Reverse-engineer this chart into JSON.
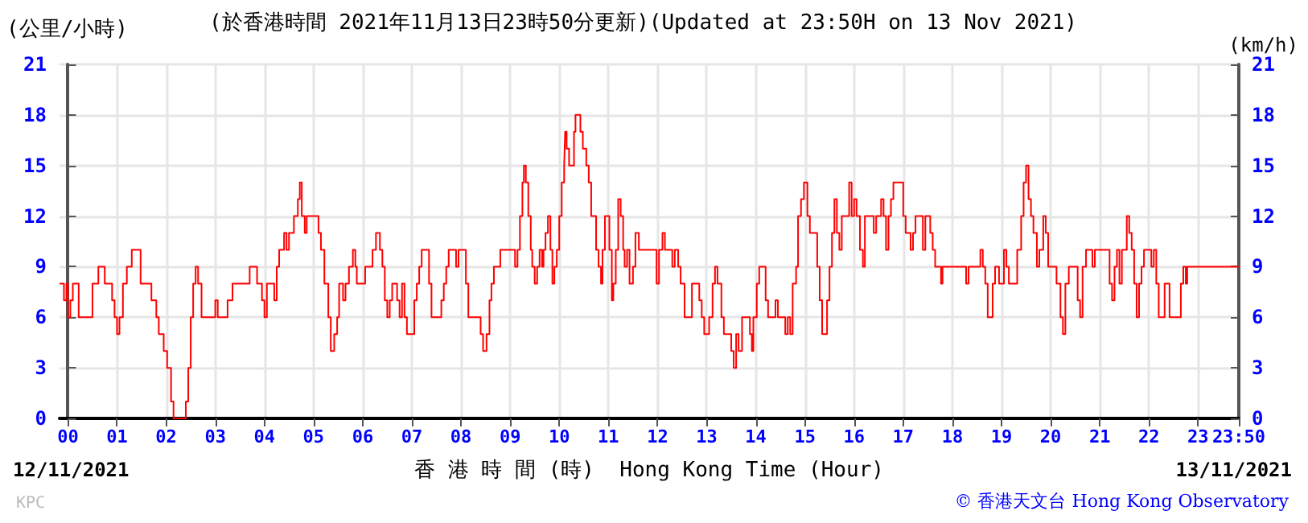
{
  "chart_data": {
    "type": "step",
    "title": "(於香港時間 2021年11月13日23時50分更新)(Updated at 23:50H on 13 Nov 2021)",
    "ylabel": "(公里/小時)",
    "y2label": "(km/h)",
    "xlabel": "香 港 時 間 (時)  Hong Kong Time (Hour)",
    "annotations": [
      "12/11/2021",
      "13/11/2021",
      "© 香港天文台 Hong Kong Observatory",
      "KPC"
    ],
    "xlim": [
      -0.17,
      23.83
    ],
    "xticks": [
      {
        "value": 0,
        "label": "00"
      },
      {
        "value": 1,
        "label": "01"
      },
      {
        "value": 2,
        "label": "02"
      },
      {
        "value": 3,
        "label": "03"
      },
      {
        "value": 4,
        "label": "04"
      },
      {
        "value": 5,
        "label": "05"
      },
      {
        "value": 6,
        "label": "06"
      },
      {
        "value": 7,
        "label": "07"
      },
      {
        "value": 8,
        "label": "08"
      },
      {
        "value": 9,
        "label": "09"
      },
      {
        "value": 10,
        "label": "10"
      },
      {
        "value": 11,
        "label": "11"
      },
      {
        "value": 12,
        "label": "12"
      },
      {
        "value": 13,
        "label": "13"
      },
      {
        "value": 14,
        "label": "14"
      },
      {
        "value": 15,
        "label": "15"
      },
      {
        "value": 16,
        "label": "16"
      },
      {
        "value": 17,
        "label": "17"
      },
      {
        "value": 18,
        "label": "18"
      },
      {
        "value": 19,
        "label": "19"
      },
      {
        "value": 20,
        "label": "20"
      },
      {
        "value": 21,
        "label": "21"
      },
      {
        "value": 22,
        "label": "22"
      },
      {
        "value": 23,
        "label": "23"
      },
      {
        "value": 23.83,
        "label": "23:50"
      }
    ],
    "ylim": [
      0,
      21
    ],
    "yticks": [
      0,
      3,
      6,
      9,
      12,
      15,
      18,
      21
    ],
    "y2lim": [
      0,
      21
    ],
    "y2ticks": [
      0,
      3,
      6,
      9,
      12,
      15,
      18,
      21
    ],
    "grid": true,
    "marker": "none",
    "line_style": "solid",
    "x": [
      -0.17,
      -0.08,
      -0.03,
      0.0,
      0.05,
      0.1,
      0.22,
      0.5,
      0.62,
      0.75,
      0.9,
      0.95,
      1.0,
      1.05,
      1.12,
      1.2,
      1.3,
      1.48,
      1.7,
      1.8,
      1.85,
      1.95,
      2.02,
      2.1,
      2.15,
      2.4,
      2.45,
      2.5,
      2.55,
      2.6,
      2.65,
      2.72,
      3.0,
      3.05,
      3.25,
      3.35,
      3.7,
      3.85,
      3.95,
      4.0,
      4.05,
      4.2,
      4.25,
      4.3,
      4.4,
      4.45,
      4.5,
      4.6,
      4.68,
      4.72,
      4.76,
      4.82,
      4.86,
      5.1,
      5.15,
      5.22,
      5.3,
      5.35,
      5.42,
      5.48,
      5.52,
      5.6,
      5.65,
      5.72,
      5.8,
      5.85,
      5.88,
      5.95,
      6.05,
      6.2,
      6.27,
      6.35,
      6.4,
      6.45,
      6.5,
      6.55,
      6.6,
      6.7,
      6.75,
      6.8,
      6.85,
      6.9,
      7.05,
      7.1,
      7.15,
      7.2,
      7.35,
      7.4,
      7.6,
      7.65,
      7.7,
      7.75,
      7.9,
      7.95,
      8.1,
      8.15,
      8.4,
      8.45,
      8.52,
      8.58,
      8.62,
      8.67,
      8.8,
      9.1,
      9.15,
      9.2,
      9.25,
      9.28,
      9.32,
      9.37,
      9.42,
      9.45,
      9.5,
      9.55,
      9.6,
      9.65,
      9.68,
      9.72,
      9.77,
      9.82,
      9.86,
      9.9,
      9.95,
      10.0,
      10.05,
      10.1,
      10.12,
      10.15,
      10.2,
      10.3,
      10.33,
      10.43,
      10.48,
      10.55,
      10.6,
      10.65,
      10.75,
      10.8,
      10.85,
      10.88,
      10.93,
      11.02,
      11.07,
      11.1,
      11.15,
      11.2,
      11.25,
      11.3,
      11.33,
      11.38,
      11.43,
      11.5,
      11.55,
      11.62,
      11.94,
      11.98,
      12.03,
      12.1,
      12.15,
      12.3,
      12.35,
      12.42,
      12.47,
      12.55,
      12.7,
      12.85,
      12.9,
      12.95,
      13.05,
      13.12,
      13.17,
      13.22,
      13.3,
      13.35,
      13.5,
      13.55,
      13.6,
      13.65,
      13.72,
      13.88,
      13.92,
      13.95,
      14.02,
      14.07,
      14.2,
      14.25,
      14.4,
      14.45,
      14.6,
      14.65,
      14.7,
      14.75,
      14.82,
      14.86,
      14.92,
      14.98,
      15.05,
      15.1,
      15.25,
      15.3,
      15.35,
      15.45,
      15.5,
      15.55,
      15.6,
      15.65,
      15.7,
      15.75,
      15.9,
      15.95,
      16.0,
      16.05,
      16.12,
      16.18,
      16.22,
      16.4,
      16.45,
      16.55,
      16.6,
      16.65,
      16.7,
      16.75,
      16.8,
      17.0,
      17.05,
      17.15,
      17.2,
      17.25,
      17.4,
      17.45,
      17.55,
      17.6,
      17.65,
      17.77,
      17.8,
      18.28,
      18.33,
      18.57,
      18.62,
      18.67,
      18.72,
      18.82,
      18.87,
      18.95,
      19.05,
      19.1,
      19.15,
      19.32,
      19.4,
      19.45,
      19.5,
      19.55,
      19.6,
      19.65,
      19.72,
      19.77,
      19.85,
      19.9,
      19.95,
      20.12,
      20.2,
      20.25,
      20.3,
      20.37,
      20.55,
      20.6,
      20.65,
      20.72,
      20.85,
      20.9,
      21.2,
      21.25,
      21.3,
      21.35,
      21.4,
      21.45,
      21.55,
      21.6,
      21.65,
      21.7,
      21.75,
      21.8,
      21.85,
      21.9,
      22.05,
      22.1,
      22.15,
      22.2,
      22.32,
      22.42,
      22.65,
      22.7,
      22.75,
      22.78,
      23.83
    ],
    "series": [
      {
        "color": "#ff0000",
        "values": [
          8,
          7,
          8,
          6,
          7,
          8,
          6,
          8,
          9,
          8,
          7,
          6,
          5,
          6,
          8,
          9,
          10,
          8,
          7,
          6,
          5,
          4,
          3,
          1,
          0,
          1,
          3,
          6,
          8,
          9,
          8,
          6,
          7,
          6,
          7,
          8,
          9,
          8,
          7,
          6,
          8,
          7,
          9,
          10,
          11,
          10,
          11,
          12,
          13,
          14,
          12,
          11,
          12,
          11,
          10,
          8,
          6,
          4,
          5,
          6,
          8,
          7,
          8,
          9,
          10,
          9,
          8,
          8,
          9,
          10,
          11,
          10,
          9,
          7,
          6,
          7,
          8,
          7,
          6,
          8,
          6,
          5,
          7,
          8,
          9,
          10,
          8,
          6,
          7,
          8,
          9,
          10,
          9,
          10,
          8,
          6,
          5,
          4,
          5,
          7,
          8,
          9,
          10,
          9,
          10,
          12,
          14,
          15,
          14,
          12,
          10,
          9,
          8,
          9,
          10,
          9,
          10,
          11,
          12,
          10,
          8,
          9,
          10,
          12,
          14,
          15,
          17,
          16,
          15,
          17,
          18,
          17,
          16,
          15,
          14,
          12,
          10,
          9,
          8,
          10,
          12,
          10,
          7,
          8,
          10,
          13,
          12,
          10,
          9,
          10,
          8,
          9,
          11,
          10,
          10,
          8,
          10,
          11,
          10,
          9,
          10,
          9,
          8,
          6,
          8,
          7,
          6,
          5,
          6,
          8,
          9,
          8,
          6,
          5,
          4,
          3,
          5,
          4,
          6,
          5,
          4,
          6,
          8,
          9,
          7,
          6,
          7,
          6,
          5,
          6,
          5,
          8,
          9,
          12,
          13,
          14,
          12,
          11,
          9,
          7,
          5,
          7,
          9,
          11,
          13,
          11,
          10,
          12,
          14,
          12,
          13,
          12,
          10,
          9,
          12,
          11,
          12,
          13,
          12,
          10,
          12,
          13,
          14,
          12,
          11,
          10,
          11,
          12,
          10,
          12,
          11,
          10,
          9,
          8,
          9,
          8,
          9,
          10,
          9,
          8,
          6,
          8,
          9,
          8,
          10,
          9,
          8,
          10,
          12,
          14,
          15,
          13,
          12,
          11,
          9,
          10,
          12,
          11,
          9,
          8,
          6,
          5,
          8,
          9,
          7,
          6,
          9,
          10,
          9,
          10,
          8,
          7,
          9,
          10,
          8,
          10,
          12,
          11,
          10,
          8,
          6,
          8,
          9,
          10,
          9,
          10,
          8,
          6,
          8,
          6,
          8,
          9,
          8,
          9,
          9
        ]
      }
    ]
  }
}
